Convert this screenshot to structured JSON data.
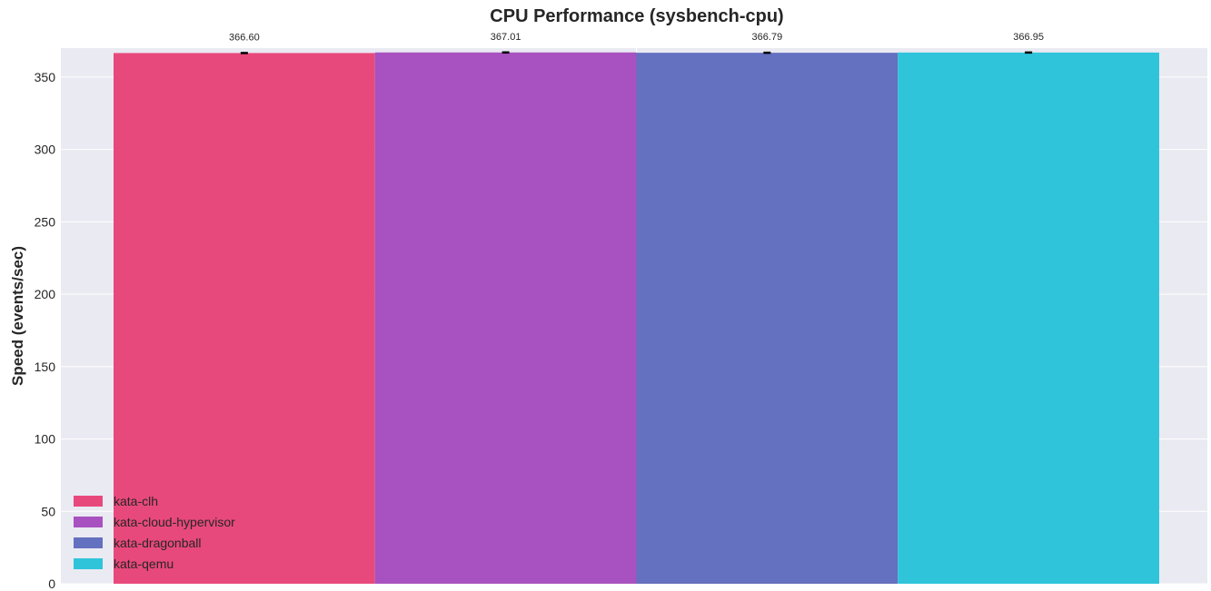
{
  "chart_data": {
    "type": "bar",
    "title": "CPU Performance (sysbench-cpu)",
    "xlabel": "",
    "ylabel": "Speed (events/sec)",
    "ylim": [
      0,
      370
    ],
    "yticks": [
      0,
      50,
      100,
      150,
      200,
      250,
      300,
      350
    ],
    "grid": true,
    "legend_position": "lower-left",
    "series": [
      {
        "name": "kata-clh",
        "value": 366.6,
        "label": "366.60",
        "color": "#E8497C"
      },
      {
        "name": "kata-cloud-hypervisor",
        "value": 367.01,
        "label": "367.01",
        "color": "#A851C0"
      },
      {
        "name": "kata-dragonball",
        "value": 366.79,
        "label": "366.79",
        "color": "#6470C0"
      },
      {
        "name": "kata-qemu",
        "value": 366.95,
        "label": "366.95",
        "color": "#30C4DB"
      }
    ],
    "colors": {
      "plot_background": "#EAEAF2",
      "grid": "#FFFFFF",
      "error_bar": "#000000"
    }
  }
}
